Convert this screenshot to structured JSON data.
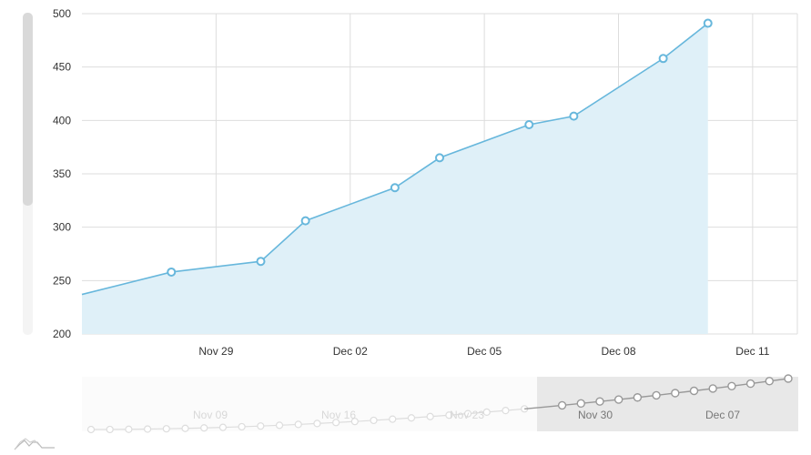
{
  "chart_data": {
    "type": "area",
    "title": "",
    "xlabel": "",
    "ylabel": "",
    "grid": true,
    "legend": "none",
    "xlim": [
      "2016-11-26",
      "2016-12-12"
    ],
    "ylim": [
      200,
      500
    ],
    "y_ticks": [
      "200",
      "250",
      "300",
      "350",
      "400",
      "450",
      "500"
    ],
    "x_ticks": [
      {
        "date": "2016-11-29",
        "label": "Nov 29"
      },
      {
        "date": "2016-12-02",
        "label": "Dec 02"
      },
      {
        "date": "2016-12-05",
        "label": "Dec 05"
      },
      {
        "date": "2016-12-08",
        "label": "Dec 08"
      },
      {
        "date": "2016-12-11",
        "label": "Dec 11"
      }
    ],
    "series": [
      {
        "x": [
          "2016-11-26",
          "2016-11-28",
          "2016-11-30",
          "2016-12-01",
          "2016-12-03",
          "2016-12-04",
          "2016-12-06",
          "2016-12-07",
          "2016-12-09",
          "2016-12-10"
        ],
        "y": [
          237,
          258,
          268,
          306,
          337,
          365,
          396,
          404,
          458,
          491
        ],
        "markers": [
          false,
          true,
          true,
          true,
          true,
          true,
          true,
          true,
          true,
          true
        ]
      }
    ],
    "colors": {
      "line": "#67b7dc",
      "fill": "#dff0f8",
      "grid": "#dddddd",
      "scrollbar_thumb": "#d9d9d9",
      "scrollbar_track": "#f4f4f4"
    },
    "navigator": {
      "x_ticks": [
        {
          "label": "Nov 09",
          "faded": true
        },
        {
          "label": "Nov 16",
          "faded": true
        },
        {
          "label": "Nov 23",
          "faded": true
        },
        {
          "label": "Nov 30",
          "faded": false
        },
        {
          "label": "Dec 07",
          "faded": false
        }
      ],
      "selected_range": [
        "2016-11-26",
        "2016-12-12"
      ],
      "colors": {
        "line": "#999999",
        "faded_line": "#dddddd",
        "selection": "#e8e8e8"
      },
      "icon": "mini-chart-icon"
    },
    "vertical_scrollbar": {
      "thumb_fraction": 0.6
    }
  }
}
